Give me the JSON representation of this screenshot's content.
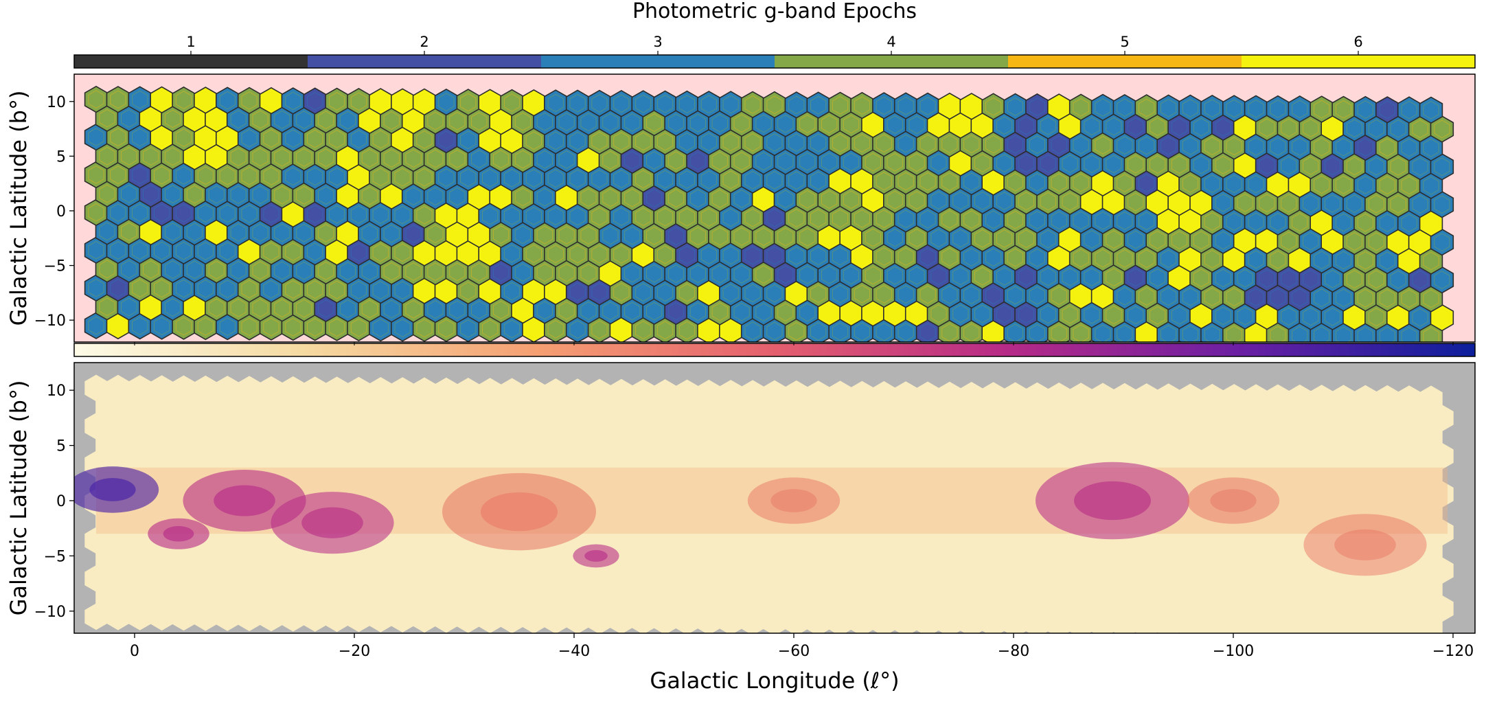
{
  "figure": {
    "top_colorbar_label": "Photometric g-band Epochs",
    "top_ylabel": "Galactic Latitude (b°)",
    "bottom_ylabel": "Galactic Latitude (b°)",
    "xlabel": "Galactic Longitude (ℓ°)"
  },
  "chart_data": [
    {
      "type": "heatmap",
      "panel": "top",
      "title": "Photometric g-band Epochs",
      "ylabel": "Galactic Latitude (b°)",
      "xlim": [
        5.5,
        -122
      ],
      "ylim": [
        -12,
        12.5
      ],
      "yticks": [
        10,
        5,
        0,
        -5,
        -10
      ],
      "ytick_labels": [
        "10",
        "5",
        "0",
        "−5",
        "−10"
      ],
      "background": "#ffd9d9",
      "colorbar": {
        "position": "top",
        "categories": [
          "1",
          "2",
          "3",
          "4",
          "5",
          "6"
        ],
        "colors": [
          "#333333",
          "#4350a4",
          "#2a7fb8",
          "#84a847",
          "#f6b715",
          "#f4f20e"
        ]
      },
      "footprint_bounds": {
        "l": [
          3.5,
          -119.5
        ],
        "b": [
          -11,
          11
        ]
      },
      "high_epoch_regions": [
        {
          "l": -5,
          "b": 8,
          "r": 4
        },
        {
          "l": -22,
          "b": 4,
          "r": 3
        },
        {
          "l": -34,
          "b": 8,
          "r": 3
        },
        {
          "l": -29,
          "b": -4,
          "r": 4
        },
        {
          "l": -65,
          "b": 0,
          "r": 3
        },
        {
          "l": -75,
          "b": 7,
          "r": 3
        },
        {
          "l": -95,
          "b": 0,
          "r": 3
        },
        {
          "l": -105,
          "b": -3,
          "r": 2
        }
      ],
      "low_epoch_regions": [
        {
          "l": -82,
          "b": 6,
          "r": 3
        },
        {
          "l": -80,
          "b": -8,
          "r": 3
        },
        {
          "l": -105,
          "b": -6,
          "r": 3
        }
      ]
    },
    {
      "type": "heatmap",
      "panel": "bottom",
      "xlabel": "Galactic Longitude (ℓ°)",
      "ylabel": "Galactic Latitude (b°)",
      "xlim": [
        5.5,
        -122
      ],
      "ylim": [
        -12,
        12.5
      ],
      "xticks": [
        0,
        -20,
        -40,
        -60,
        -80,
        -100,
        -120
      ],
      "xtick_labels": [
        "0",
        "−20",
        "−40",
        "−60",
        "−80",
        "−100",
        "−120"
      ],
      "yticks": [
        10,
        5,
        0,
        -5,
        -10
      ],
      "ytick_labels": [
        "10",
        "5",
        "0",
        "−5",
        "−10"
      ],
      "background": "#b3b3b3",
      "colorbar": {
        "position": "top",
        "colormap": [
          "#fdfbe7",
          "#f5d9a0",
          "#f59e72",
          "#e45f6e",
          "#b62a87",
          "#6a1fa3",
          "#0d1f9c"
        ]
      },
      "dust_lanes": [
        {
          "l": 2,
          "b": 1,
          "r": 3,
          "intensity": 0.95
        },
        {
          "l": -4,
          "b": -3,
          "r": 2,
          "intensity": 0.85
        },
        {
          "l": -10,
          "b": 0,
          "r": 4,
          "intensity": 0.8
        },
        {
          "l": -18,
          "b": -2,
          "r": 4,
          "intensity": 0.7
        },
        {
          "l": -35,
          "b": -1,
          "r": 5,
          "intensity": 0.65
        },
        {
          "l": -42,
          "b": -5,
          "r": 1.5,
          "intensity": 0.75
        },
        {
          "l": -60,
          "b": 0,
          "r": 3,
          "intensity": 0.45
        },
        {
          "l": -89,
          "b": 0,
          "r": 5,
          "intensity": 0.7
        },
        {
          "l": -100,
          "b": 0,
          "r": 3,
          "intensity": 0.5
        },
        {
          "l": -112,
          "b": -4,
          "r": 4,
          "intensity": 0.45
        }
      ]
    }
  ]
}
